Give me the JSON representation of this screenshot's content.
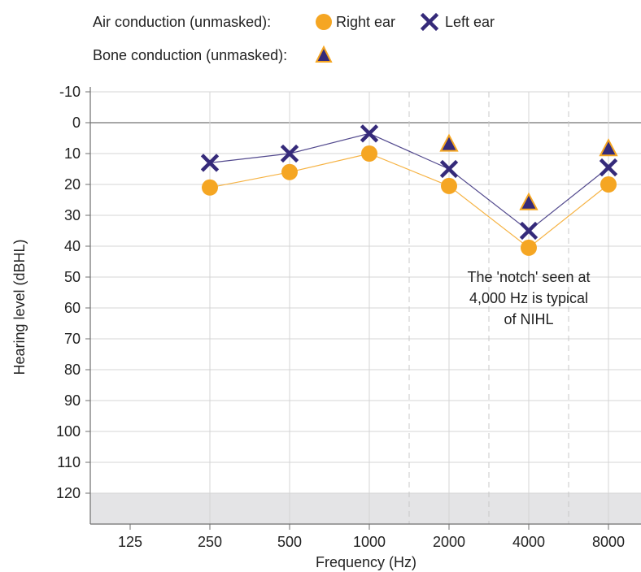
{
  "chart_data": {
    "type": "line",
    "title": "",
    "xlabel": "Frequency (Hz)",
    "ylabel": "Hearing level (dBHL)",
    "categories": [
      "125",
      "250",
      "500",
      "1000",
      "2000",
      "4000",
      "8000"
    ],
    "yticks": [
      -10,
      0,
      10,
      20,
      30,
      40,
      50,
      60,
      70,
      80,
      90,
      100,
      110,
      120
    ],
    "ylim": [
      -10,
      130
    ],
    "y_inverted": true,
    "grid": true,
    "shaded_region": {
      "from": 120,
      "to": 130
    },
    "legend": {
      "position": "top-left",
      "air_label": "Air conduction (unmasked):",
      "bone_label": "Bone conduction (unmasked):"
    },
    "series": [
      {
        "name": "Right ear",
        "marker": "circle",
        "color": "#f5a623",
        "x": [
          "250",
          "500",
          "1000",
          "2000",
          "4000",
          "8000"
        ],
        "values": [
          21,
          16,
          10,
          20.5,
          40.5,
          20
        ]
      },
      {
        "name": "Left ear",
        "marker": "cross",
        "color": "#352a7a",
        "x": [
          "250",
          "500",
          "1000",
          "2000",
          "4000",
          "8000"
        ],
        "values": [
          13,
          10,
          3.5,
          15,
          35,
          14.5
        ]
      },
      {
        "name": "",
        "marker": "triangle",
        "color": "#f5a623",
        "x": [
          "2000",
          "4000",
          "8000"
        ],
        "values": [
          7,
          26,
          8.5
        ]
      }
    ],
    "annotation": {
      "lines": [
        "The 'notch' seen at",
        "4,000 Hz is typical",
        "of NIHL"
      ],
      "x": "4000",
      "y": 50
    }
  }
}
